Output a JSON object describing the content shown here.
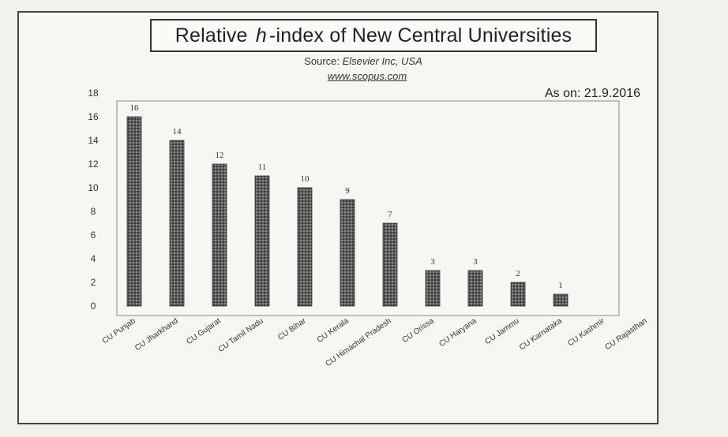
{
  "chart_data": {
    "type": "bar",
    "title_pre": "Relative ",
    "title_italic": "h",
    "title_post": "-index of New Central Universities",
    "source_label": "Source: ",
    "source_org": "Elsevier Inc, USA",
    "source_url": "www.scopus.com",
    "as_on": "As on: 21.9.2016",
    "categories": [
      "CU Punjab",
      "CU Jharkhand",
      "CU Gujarat",
      "CU Tamil Nadu",
      "CU Bihar",
      "CU Kerala",
      "CU Himachal Pradesh",
      "CU Orissa",
      "CU Haryana",
      "CU Jammu",
      "CU Karnataka",
      "CU Kashmir",
      "CU Rajasthan"
    ],
    "values": [
      16,
      14,
      12,
      11,
      10,
      9,
      7,
      3,
      3,
      2,
      1,
      0,
      0
    ],
    "data_labels": [
      "16",
      "14",
      "12",
      "11",
      "10",
      "9",
      "7",
      "3",
      "3",
      "2",
      "1",
      "",
      ""
    ],
    "yticks": [
      0,
      2,
      4,
      6,
      8,
      10,
      12,
      14,
      16,
      18
    ],
    "ylim": [
      0,
      18
    ],
    "xlabel": "",
    "ylabel": "",
    "grid": false,
    "bar_color": "#6a6a6a"
  }
}
